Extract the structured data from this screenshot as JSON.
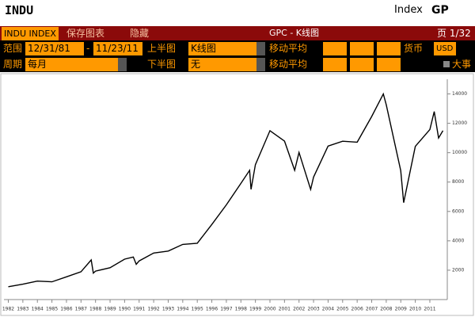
{
  "header": {
    "ticker": "INDU",
    "type": "Index",
    "function": "GP"
  },
  "toolbar": {
    "security": "INDU INDEX",
    "save": "保存图表",
    "hide": "隐藏",
    "title": "GPC - K线图",
    "page": "页 1/32"
  },
  "controls": {
    "range_label": "范围",
    "start": "12/31/81",
    "dash": "-",
    "end": "11/23/11",
    "upper_label": "上半图",
    "upper": "K线图",
    "ma_label": "移动平均",
    "currency_label": "货币",
    "currency": "USD",
    "period_label": "周期",
    "period": "每月",
    "lower_label": "下半图",
    "lower": "无",
    "ma_label_lower": "移动平均",
    "events": "大事"
  },
  "chart_data": {
    "type": "line",
    "color": "#000000",
    "x": [
      1982,
      1983,
      1984,
      1985,
      1986,
      1987,
      1987.7,
      1987.85,
      1988,
      1989,
      1990,
      1990.6,
      1990.8,
      1991,
      1992,
      1993,
      1994,
      1995,
      1996,
      1997,
      1998,
      1998.6,
      1998.7,
      1999,
      2000,
      2001,
      2001.7,
      2002,
      2002.8,
      2003,
      2004,
      2005,
      2006,
      2007,
      2007.8,
      2008,
      2009,
      2009.2,
      2010,
      2011,
      2011.3,
      2011.6,
      2011.9
    ],
    "values": [
      875,
      1046,
      1258,
      1211,
      1546,
      1895,
      2700,
      1800,
      1938,
      2168,
      2753,
      2900,
      2400,
      2633,
      3168,
      3301,
      3754,
      3834,
      5117,
      6448,
      7908,
      8800,
      7500,
      9181,
      11497,
      10787,
      8800,
      10021,
      7500,
      8341,
      10453,
      10783,
      10717,
      12463,
      14000,
      13264,
      8776,
      6600,
      10428,
      11577,
      12800,
      11000,
      11500
    ],
    "xlim": [
      1981.7,
      2012.2
    ],
    "ylim": [
      0,
      15000
    ],
    "xticks": [
      1982,
      1983,
      1984,
      1985,
      1986,
      1987,
      1988,
      1989,
      1990,
      1991,
      1992,
      1993,
      1994,
      1995,
      1996,
      1997,
      1998,
      1999,
      2000,
      2001,
      2002,
      2003,
      2004,
      2005,
      2006,
      2007,
      2008,
      2009,
      2010,
      2011
    ],
    "yticks": [
      2000,
      4000,
      6000,
      8000,
      10000,
      12000,
      14000
    ]
  }
}
